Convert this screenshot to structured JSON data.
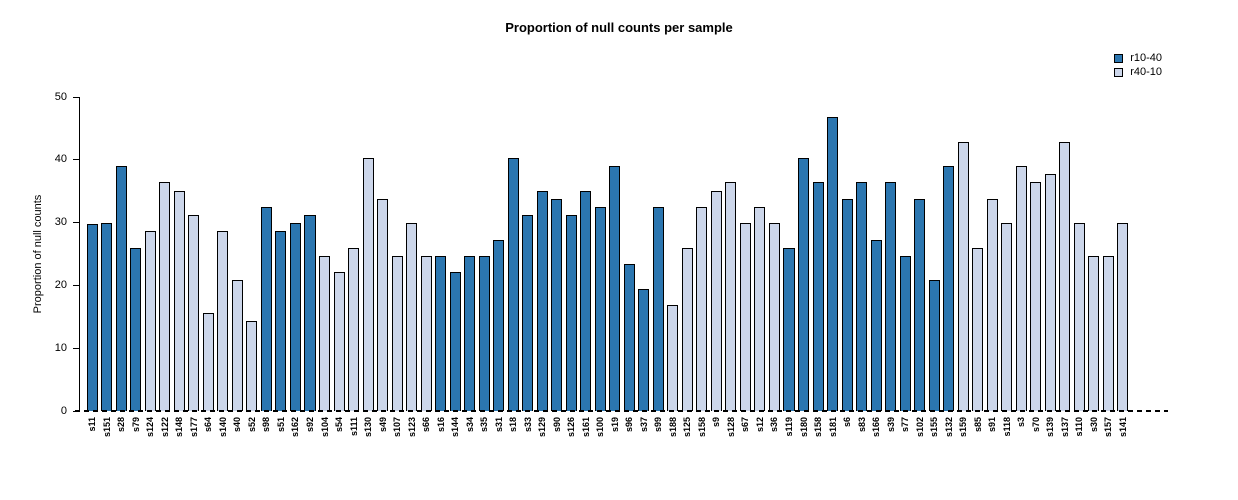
{
  "title": "Proportion of null counts per sample",
  "y_axis": {
    "label": "Proportion of null counts",
    "ticks": [
      0,
      10,
      20,
      30,
      40,
      50
    ],
    "max": 50
  },
  "chart_data": {
    "type": "bar",
    "title": "Proportion of null counts per sample",
    "xlabel": "",
    "ylabel": "Proportion of null counts",
    "ylim": [
      0,
      50
    ],
    "grid": false,
    "legend_position": "top-right",
    "legend": [
      {
        "label": "r10-40",
        "color": "#2b76b0"
      },
      {
        "label": "r40-10",
        "color": "#ccd6ea"
      }
    ],
    "series_colors": {
      "r10-40": "#2b76b0",
      "r40-10": "#ccd6ea"
    },
    "categories": [
      "s11",
      "s151",
      "s28",
      "s79",
      "s124",
      "s122",
      "s148",
      "s177",
      "s64",
      "s140",
      "s40",
      "s52",
      "s98",
      "s51",
      "s162",
      "s92",
      "s104",
      "s54",
      "s111",
      "s130",
      "s49",
      "s107",
      "s123",
      "s66",
      "s16",
      "s144",
      "s34",
      "s35",
      "s31",
      "s18",
      "s33",
      "s129",
      "s90",
      "s126",
      "s161",
      "s100",
      "s19",
      "s96",
      "s37",
      "s99",
      "s188",
      "s125",
      "s158",
      "s9",
      "s128",
      "s67",
      "s12",
      "s36",
      "s119",
      "s180",
      "s158",
      "s181",
      "s6",
      "s83",
      "s166",
      "s39",
      "s77",
      "s102",
      "s155",
      "s132",
      "s159",
      "s85",
      "s91",
      "s118",
      "s3",
      "s70",
      "s139",
      "s137",
      "s110",
      "s30",
      "s157",
      "s141"
    ],
    "values": [
      29.8,
      29.9,
      39.0,
      26.0,
      28.6,
      36.4,
      35.1,
      31.2,
      15.6,
      28.6,
      20.8,
      14.3,
      32.5,
      28.6,
      29.9,
      31.2,
      24.7,
      22.1,
      26.0,
      40.3,
      33.8,
      24.7,
      29.9,
      24.7,
      24.7,
      22.1,
      24.7,
      24.7,
      27.3,
      40.3,
      31.2,
      35.1,
      33.8,
      31.2,
      35.1,
      32.5,
      39.0,
      23.4,
      19.5,
      32.5,
      16.9,
      26.0,
      32.5,
      35.1,
      36.4,
      29.9,
      32.5,
      29.9,
      26.0,
      40.3,
      36.4,
      46.8,
      33.8,
      36.4,
      27.3,
      36.4,
      24.7,
      33.8,
      20.8,
      39.0,
      42.9,
      26.0,
      33.8,
      29.9,
      39.0,
      36.4,
      37.7,
      42.9,
      29.9,
      24.7,
      24.7,
      29.9
    ],
    "groups": [
      "r10-40",
      "r10-40",
      "r10-40",
      "r10-40",
      "r40-10",
      "r40-10",
      "r40-10",
      "r40-10",
      "r40-10",
      "r40-10",
      "r40-10",
      "r40-10",
      "r10-40",
      "r10-40",
      "r10-40",
      "r10-40",
      "r40-10",
      "r40-10",
      "r40-10",
      "r40-10",
      "r40-10",
      "r40-10",
      "r40-10",
      "r40-10",
      "r10-40",
      "r10-40",
      "r10-40",
      "r10-40",
      "r10-40",
      "r10-40",
      "r10-40",
      "r10-40",
      "r10-40",
      "r10-40",
      "r10-40",
      "r10-40",
      "r10-40",
      "r10-40",
      "r10-40",
      "r10-40",
      "r40-10",
      "r40-10",
      "r40-10",
      "r40-10",
      "r40-10",
      "r40-10",
      "r40-10",
      "r40-10",
      "r10-40",
      "r10-40",
      "r10-40",
      "r10-40",
      "r10-40",
      "r10-40",
      "r10-40",
      "r10-40",
      "r10-40",
      "r10-40",
      "r10-40",
      "r10-40",
      "r40-10",
      "r40-10",
      "r40-10",
      "r40-10",
      "r40-10",
      "r40-10",
      "r40-10",
      "r40-10",
      "r40-10",
      "r40-10",
      "r40-10",
      "r40-10"
    ]
  }
}
